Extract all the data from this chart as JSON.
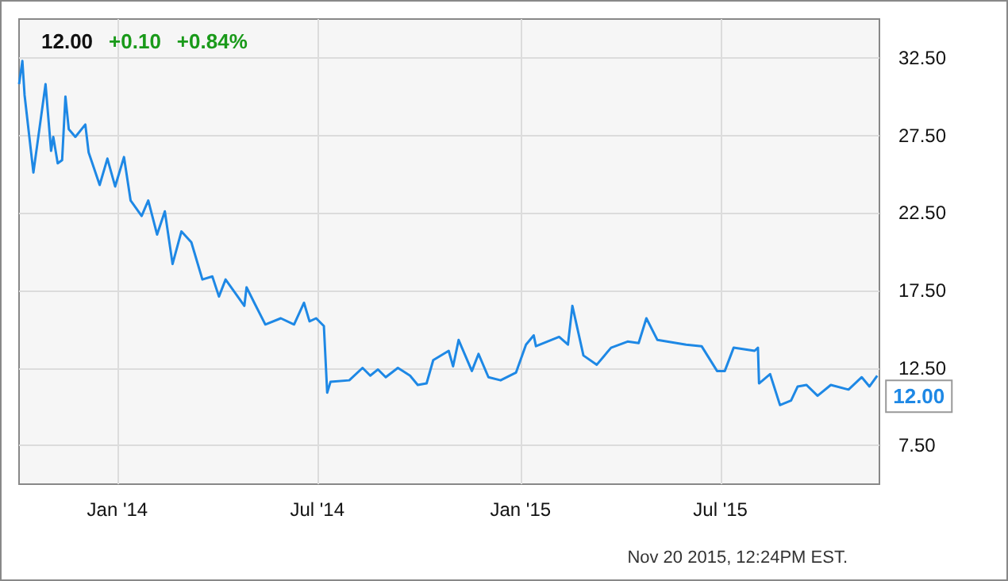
{
  "chart_data": {
    "type": "line",
    "title": "12.00",
    "annotations": [
      "+0.10",
      "+0.84%",
      "Nov 20 2015, 12:24PM EST.",
      {
        "text": "12.00",
        "x": "2015-11-20",
        "y": 12
      }
    ],
    "x": [
      "2013-10-04",
      "2013-10-07",
      "2013-10-09",
      "2013-10-17",
      "2013-10-28",
      "2013-11-02",
      "2013-11-04",
      "2013-11-08",
      "2013-11-12",
      "2013-11-15",
      "2013-11-18",
      "2013-11-24",
      "2013-12-03",
      "2013-12-06",
      "2013-12-16",
      "2013-12-23",
      "2013-12-30",
      "2014-01-07",
      "2014-01-13",
      "2014-01-23",
      "2014-01-29",
      "2014-02-06",
      "2014-02-13",
      "2014-02-20",
      "2014-02-28",
      "2014-03-09",
      "2014-03-19",
      "2014-03-28",
      "2014-04-03",
      "2014-04-09",
      "2014-04-26",
      "2014-04-28",
      "2014-05-05",
      "2014-05-15",
      "2014-05-29",
      "2014-06-10",
      "2014-06-19",
      "2014-06-24",
      "2014-06-30",
      "2014-07-07",
      "2014-07-10",
      "2014-07-13",
      "2014-07-30",
      "2014-08-11",
      "2014-08-18",
      "2014-08-25",
      "2014-09-01",
      "2014-09-12",
      "2014-09-23",
      "2014-09-30",
      "2014-10-08",
      "2014-10-14",
      "2014-10-28",
      "2014-11-01",
      "2014-11-06",
      "2014-11-18",
      "2014-11-24",
      "2014-12-03",
      "2014-12-14",
      "2014-12-28",
      "2015-01-06",
      "2015-01-13",
      "2015-01-15",
      "2015-02-05",
      "2015-02-13",
      "2015-02-17",
      "2015-02-22",
      "2015-02-27",
      "2015-03-11",
      "2015-03-24",
      "2015-04-08",
      "2015-04-18",
      "2015-04-25",
      "2015-05-05",
      "2015-05-31",
      "2015-06-14",
      "2015-06-28",
      "2015-07-05",
      "2015-07-13",
      "2015-08-01",
      "2015-08-04",
      "2015-08-05",
      "2015-08-15",
      "2015-08-24",
      "2015-09-03",
      "2015-09-09",
      "2015-09-17",
      "2015-09-27",
      "2015-10-09",
      "2015-10-25",
      "2015-11-06",
      "2015-11-13",
      "2015-11-20"
    ],
    "series": [
      {
        "color": "#1e88e5",
        "values": [
          30.8,
          32.3,
          30.1,
          25.1,
          30.8,
          26.5,
          27.4,
          25.7,
          25.9,
          30.0,
          27.9,
          27.4,
          28.2,
          26.4,
          24.3,
          26.0,
          24.2,
          26.1,
          23.3,
          22.3,
          23.3,
          21.1,
          22.6,
          19.2,
          21.3,
          20.6,
          18.2,
          18.4,
          17.1,
          18.2,
          16.5,
          17.7,
          16.7,
          15.3,
          15.7,
          15.3,
          16.7,
          15.5,
          15.7,
          15.2,
          10.9,
          11.6,
          11.7,
          12.5,
          12.0,
          12.4,
          11.9,
          12.5,
          12.0,
          11.4,
          11.5,
          13.0,
          13.6,
          12.6,
          14.3,
          12.3,
          13.4,
          11.9,
          11.7,
          12.2,
          14.0,
          14.6,
          13.9,
          14.5,
          14.0,
          16.5,
          14.9,
          13.3,
          12.7,
          13.8,
          14.2,
          14.1,
          15.7,
          14.3,
          14.0,
          13.9,
          12.3,
          12.3,
          13.8,
          13.6,
          13.8,
          11.5,
          12.1,
          10.1,
          10.4,
          11.3,
          11.4,
          10.7,
          11.4,
          11.1,
          11.9,
          11.3,
          12.0
        ]
      }
    ],
    "xlim": [
      "2013-10-04",
      "2015-11-22"
    ],
    "xticks": [
      {
        "value": "2014-01-01",
        "label": "Jan '14"
      },
      {
        "value": "2014-07-01",
        "label": "Jul '14"
      },
      {
        "value": "2015-01-01",
        "label": "Jan '15"
      },
      {
        "value": "2015-07-01",
        "label": "Jul '15"
      }
    ],
    "ylim": [
      5,
      35
    ],
    "yticks": [
      {
        "value": 7.5,
        "label": "7.50"
      },
      {
        "value": 12.5,
        "label": "12.50"
      },
      {
        "value": 17.5,
        "label": "17.50"
      },
      {
        "value": 22.5,
        "label": "22.50"
      },
      {
        "value": 27.5,
        "label": "27.50"
      },
      {
        "value": 32.5,
        "label": "32.50"
      }
    ],
    "grid": true,
    "marker": "none",
    "line_style": "solid"
  }
}
